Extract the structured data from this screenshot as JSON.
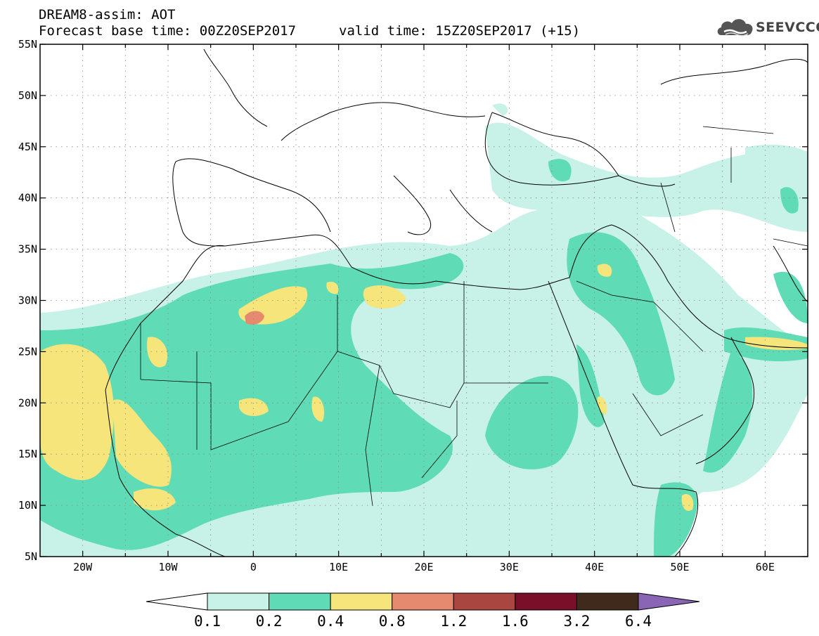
{
  "header": {
    "line1": "DREAM8-assim: AOT",
    "line2": "Forecast base time: 00Z20SEP2017",
    "line3": "valid time: 15Z20SEP2017 (+15)"
  },
  "logo": {
    "text": "SEEVCCC",
    "icon": "cloud-icon"
  },
  "map": {
    "lat_range": [
      "5N",
      "55N"
    ],
    "lon_range": [
      "25W",
      "65E"
    ],
    "lat_labels": [
      "55N",
      "50N",
      "45N",
      "40N",
      "35N",
      "30N",
      "25N",
      "20N",
      "15N",
      "10N",
      "5N"
    ],
    "lon_labels": [
      "20W",
      "10W",
      "0",
      "10E",
      "20E",
      "30E",
      "40E",
      "50E",
      "60E"
    ],
    "gridlines": "dotted",
    "colors": {
      "0.1-0.2": "#c8f2e8",
      "0.2-0.4": "#5fdcb6",
      "0.4-0.8": "#f5e57a",
      "0.8-1.2": "#e58a6e",
      "1.2-1.6": "#a9463f",
      "1.6-3.2": "#7a0f2a",
      "3.2-6.4": "#3f2a1b",
      ">6.4": "#8a65b5"
    }
  },
  "colorbar": {
    "labels": [
      "0.1",
      "0.2",
      "0.4",
      "0.8",
      "1.2",
      "1.6",
      "3.2",
      "6.4"
    ],
    "colors": [
      "#c8f2e8",
      "#5fdcb6",
      "#f5e57a",
      "#e58a6e",
      "#a9463f",
      "#7a0f2a",
      "#3f2a1b"
    ],
    "high_color": "#8a65b5"
  }
}
